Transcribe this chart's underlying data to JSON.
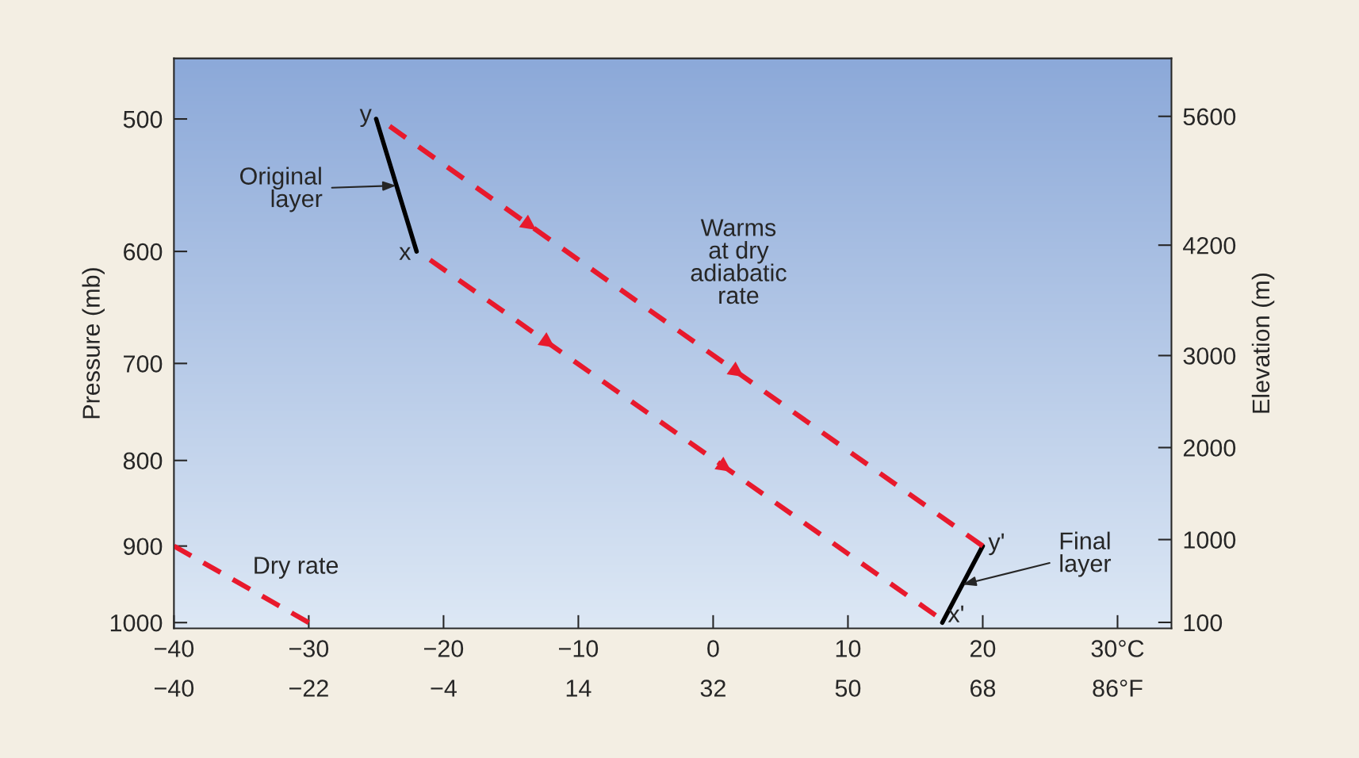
{
  "chart_data": {
    "type": "line",
    "xlim": [
      -40,
      34
    ],
    "xticks": [
      -40,
      -30,
      -20,
      -10,
      0,
      10,
      20,
      {
        "value": 30,
        "label": "30°C"
      }
    ],
    "x2lim": [
      -40,
      93.2
    ],
    "x2ticks": [
      -40,
      -22,
      -4,
      14,
      32,
      50,
      68,
      {
        "value": 86,
        "label": "86°F"
      }
    ],
    "log": "y",
    "ylim": [
      1008,
      460
    ],
    "yticks": [
      500,
      600,
      700,
      800,
      900,
      1000
    ],
    "y2lim": [
      35,
      6230
    ],
    "y2ticks": [
      5600,
      4200,
      3000,
      2000,
      1000,
      100
    ],
    "ylabel": "Pressure (mb)",
    "y2label": "Elevation (m)",
    "grid": false,
    "legend": false,
    "series": [
      {
        "color": "#000000",
        "line_style": "solid",
        "x": [
          -22,
          -25
        ],
        "values": [
          600,
          500
        ]
      },
      {
        "color": "#000000",
        "line_style": "solid",
        "x": [
          17,
          20
        ],
        "values": [
          1000,
          900
        ]
      },
      {
        "color": "#e8192c",
        "line_style": "dashed",
        "x": [
          -24,
          20
        ],
        "values": [
          505,
          900
        ]
      },
      {
        "color": "#e8192c",
        "line_style": "dashed",
        "x": [
          -21,
          16.5
        ],
        "values": [
          607,
          990
        ]
      },
      {
        "color": "#e8192c",
        "line_style": "dashed",
        "x": [
          -40,
          -30
        ],
        "values": [
          900,
          1000
        ]
      }
    ],
    "annotations": [
      {
        "text": "y",
        "x": -25,
        "y": 500
      },
      {
        "text": "x",
        "x": -22,
        "y": 600
      },
      {
        "text": "y'",
        "x": 20,
        "y": 900
      },
      {
        "text": "x'",
        "x": 17,
        "y": 1000
      },
      {
        "text": "Original\nlayer",
        "x": -23.5,
        "y": 548
      },
      {
        "text": "Final\nlayer",
        "x": 18.5,
        "y": 949
      },
      "Warms\nat dry\nadiabatic\nrate",
      "Dry rate"
    ]
  }
}
